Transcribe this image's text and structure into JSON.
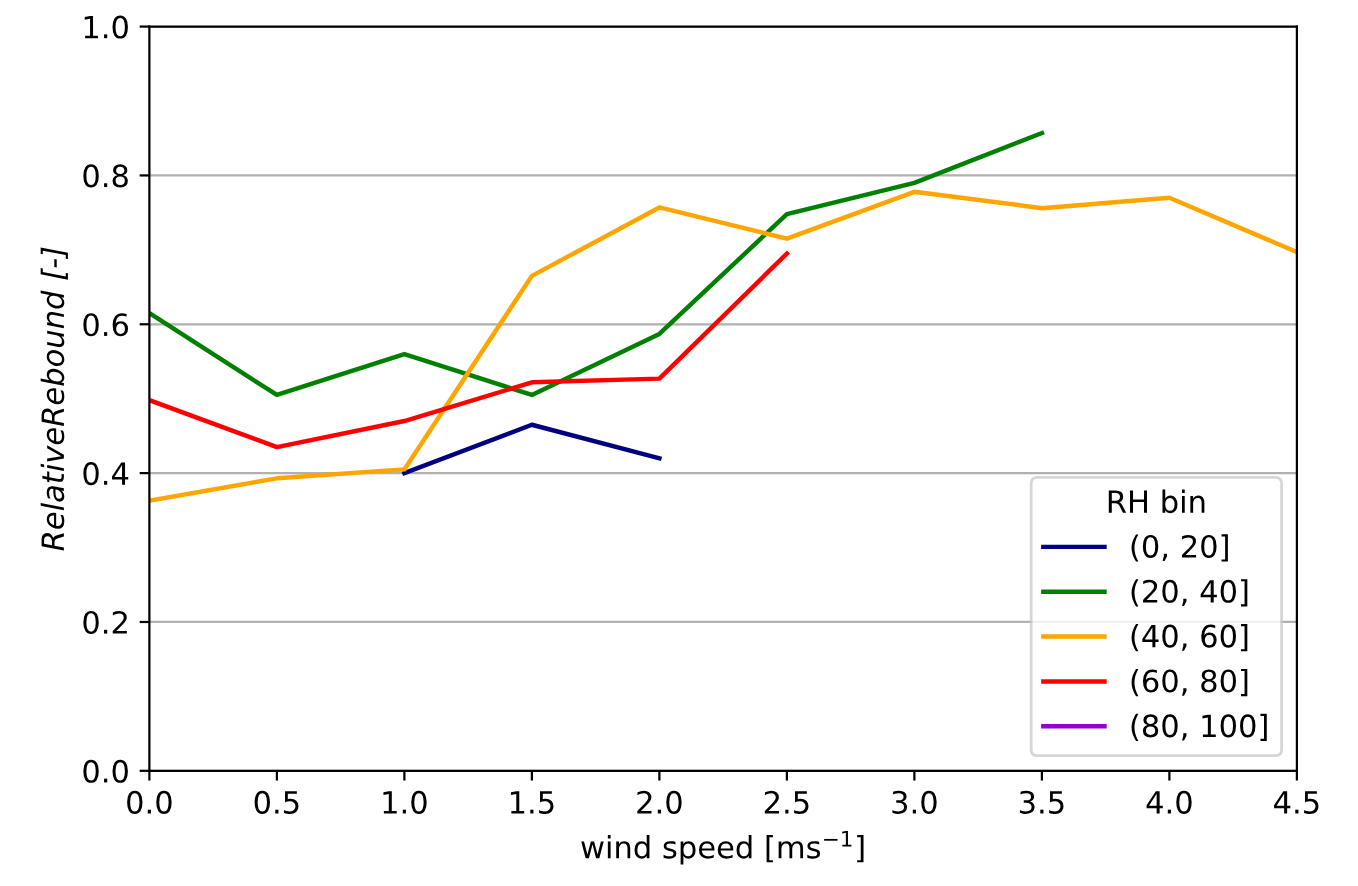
{
  "chart_data": {
    "type": "line",
    "xlabel": "wind speed [ms$^{−1}$]",
    "ylabel": "RelativeRebound [-]",
    "legend_title": "RH bin",
    "x": [
      0.0,
      0.5,
      1.0,
      1.5,
      2.0,
      2.5,
      3.0,
      3.5,
      4.0,
      4.5
    ],
    "series": [
      {
        "name": "(0, 20]",
        "color": "#000080",
        "values": [
          null,
          null,
          0.4,
          0.465,
          0.42,
          null,
          null,
          null,
          null,
          null
        ]
      },
      {
        "name": "(20, 40]",
        "color": "#008000",
        "values": [
          0.615,
          0.505,
          0.56,
          0.505,
          0.587,
          0.748,
          0.79,
          0.857,
          null,
          null
        ]
      },
      {
        "name": "(40, 60]",
        "color": "#ffa500",
        "values": [
          0.363,
          0.393,
          0.405,
          0.665,
          0.757,
          0.715,
          0.778,
          0.756,
          0.77,
          0.697
        ]
      },
      {
        "name": "(60, 80]",
        "color": "#ff0000",
        "values": [
          0.498,
          0.435,
          0.47,
          0.522,
          0.527,
          0.695,
          null,
          null,
          null,
          null
        ]
      },
      {
        "name": "(80, 100]",
        "color": "#9400d3",
        "values": [
          null,
          null,
          null,
          null,
          null,
          null,
          null,
          null,
          null,
          null
        ]
      }
    ],
    "xlim": [
      0.0,
      4.5
    ],
    "xticks": [
      {
        "value": 0,
        "label": "0.0"
      },
      0.5,
      {
        "value": 1,
        "label": "1.0"
      },
      1.5,
      {
        "value": 2,
        "label": "2.0"
      },
      2.5,
      {
        "value": 3,
        "label": "3.0"
      },
      3.5,
      {
        "value": 4,
        "label": "4.0"
      },
      4.5
    ],
    "ylim": [
      0.0,
      1.0
    ],
    "yticks": [
      {
        "value": 0,
        "label": "0.0"
      },
      0.2,
      0.4,
      0.6,
      0.8,
      {
        "value": 1,
        "label": "1.0"
      }
    ],
    "grid": "y",
    "legend": "bottom right",
    "marker": "none",
    "line_style": "solid"
  }
}
